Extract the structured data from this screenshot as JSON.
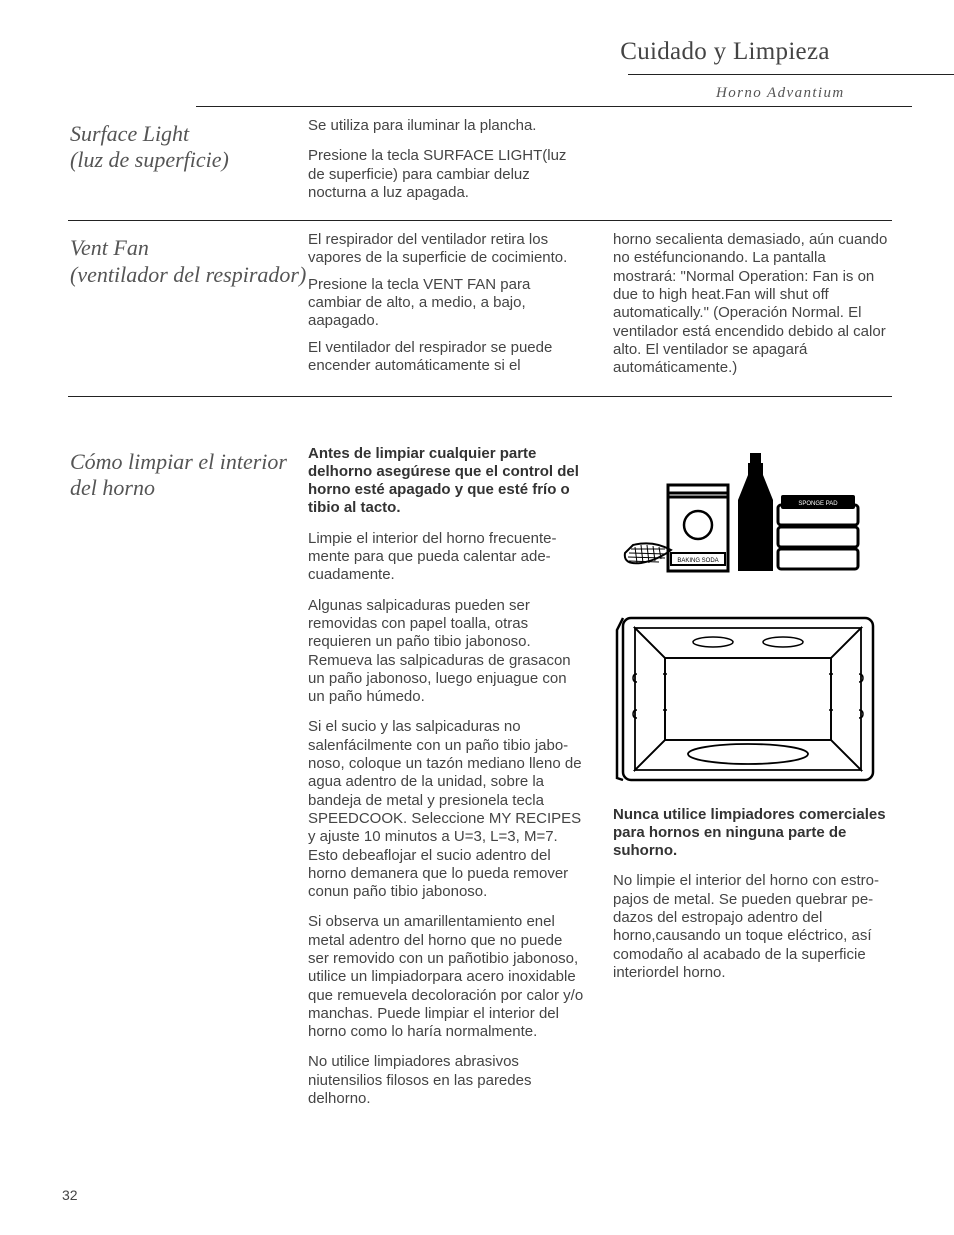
{
  "header": {
    "title": "Cuidado y Limpieza",
    "brand": "Horno Advantium"
  },
  "sections": {
    "surface_light": {
      "label": "Surface Light\n(luz de superficie)",
      "col1": {
        "p1": "Se utiliza para iluminar la plancha.",
        "p2": "Presione la tecla SURFACE LIGHT(luz de superficie) para cambiar deluz nocturna a luz apagada."
      }
    },
    "vent_fan": {
      "label": "Vent Fan\n(ventilador del respirador)",
      "col1": {
        "p1": "El respirador del ventilador retira los vapores de la superficie de cocimiento.",
        "p2": "Presione la tecla VENT FAN para cambiar de alto, a medio, a bajo, aapagado.",
        "p3": "El ventilador del respirador se puede encender automáticamente si el"
      },
      "col2": {
        "p1": "horno secalienta demasiado, aún cuando no estéfuncionando.  La pantalla mostrará: \"Normal Operation: Fan is on due to high heat.Fan will shut off automatically.\" (Operación Normal.  El ventilador está encendido debido al calor alto.  El ventilador se apagará automáticamente.)"
      }
    },
    "cleaning": {
      "label": "Cómo limpiar el interior del horno",
      "col1": {
        "p1": "Antes de limpiar cualquier parte delhorno asegúrese que el control del horno esté apagado y que esté frío o tibio al tacto.",
        "p2": "Limpie el interior del horno frecuente-mente para que pueda calentar ade-cuadamente.",
        "p3": "Algunas salpicaduras pueden ser removidas con papel toalla, otras requieren un paño tibio jabonoso.  Remueva las salpicaduras de grasacon un paño jabonoso, luego enjuague con un paño húmedo.",
        "p4": "Si el sucio y las salpicaduras no salenfácilmente con un paño tibio jabo-noso, coloque un tazón mediano lleno de agua adentro de la unidad, sobre la bandeja de metal y presionela tecla SPEEDCOOK.  Seleccione MY RECIPES y ajuste 10 minutos a U=3, L=3, M=7.  Esto debeaflojar el sucio adentro del horno demanera que lo pueda remover conun paño tibio jabonoso.",
        "p5": "Si observa un amarillentamiento enel metal adentro del horno que no puede ser removido con un pañotibio jabonoso, utilice un limpiadorpara acero inoxidable que remuevela decoloración por calor y/o manchas.  Puede limpiar el interior del horno como lo haría normalmente.",
        "p6": "No utilice limpiadores abrasivos niutensilios filosos en las paredes delhorno."
      },
      "col2": {
        "illus1_alt": "cleaning-supplies-illustration",
        "illus2_alt": "open-microwave-illustration",
        "p1": "Nunca utilice limpiadores comerciales para hornos en ninguna parte de suhorno.",
        "p2": "No limpie el interior del horno con estro-pajos de metal.  Se pueden quebrar pe-dazos del estropajo adentro del horno,causando un toque eléctrico, así comodaño al acabado de la superficie interiordel horno."
      }
    }
  },
  "page_number": "32"
}
